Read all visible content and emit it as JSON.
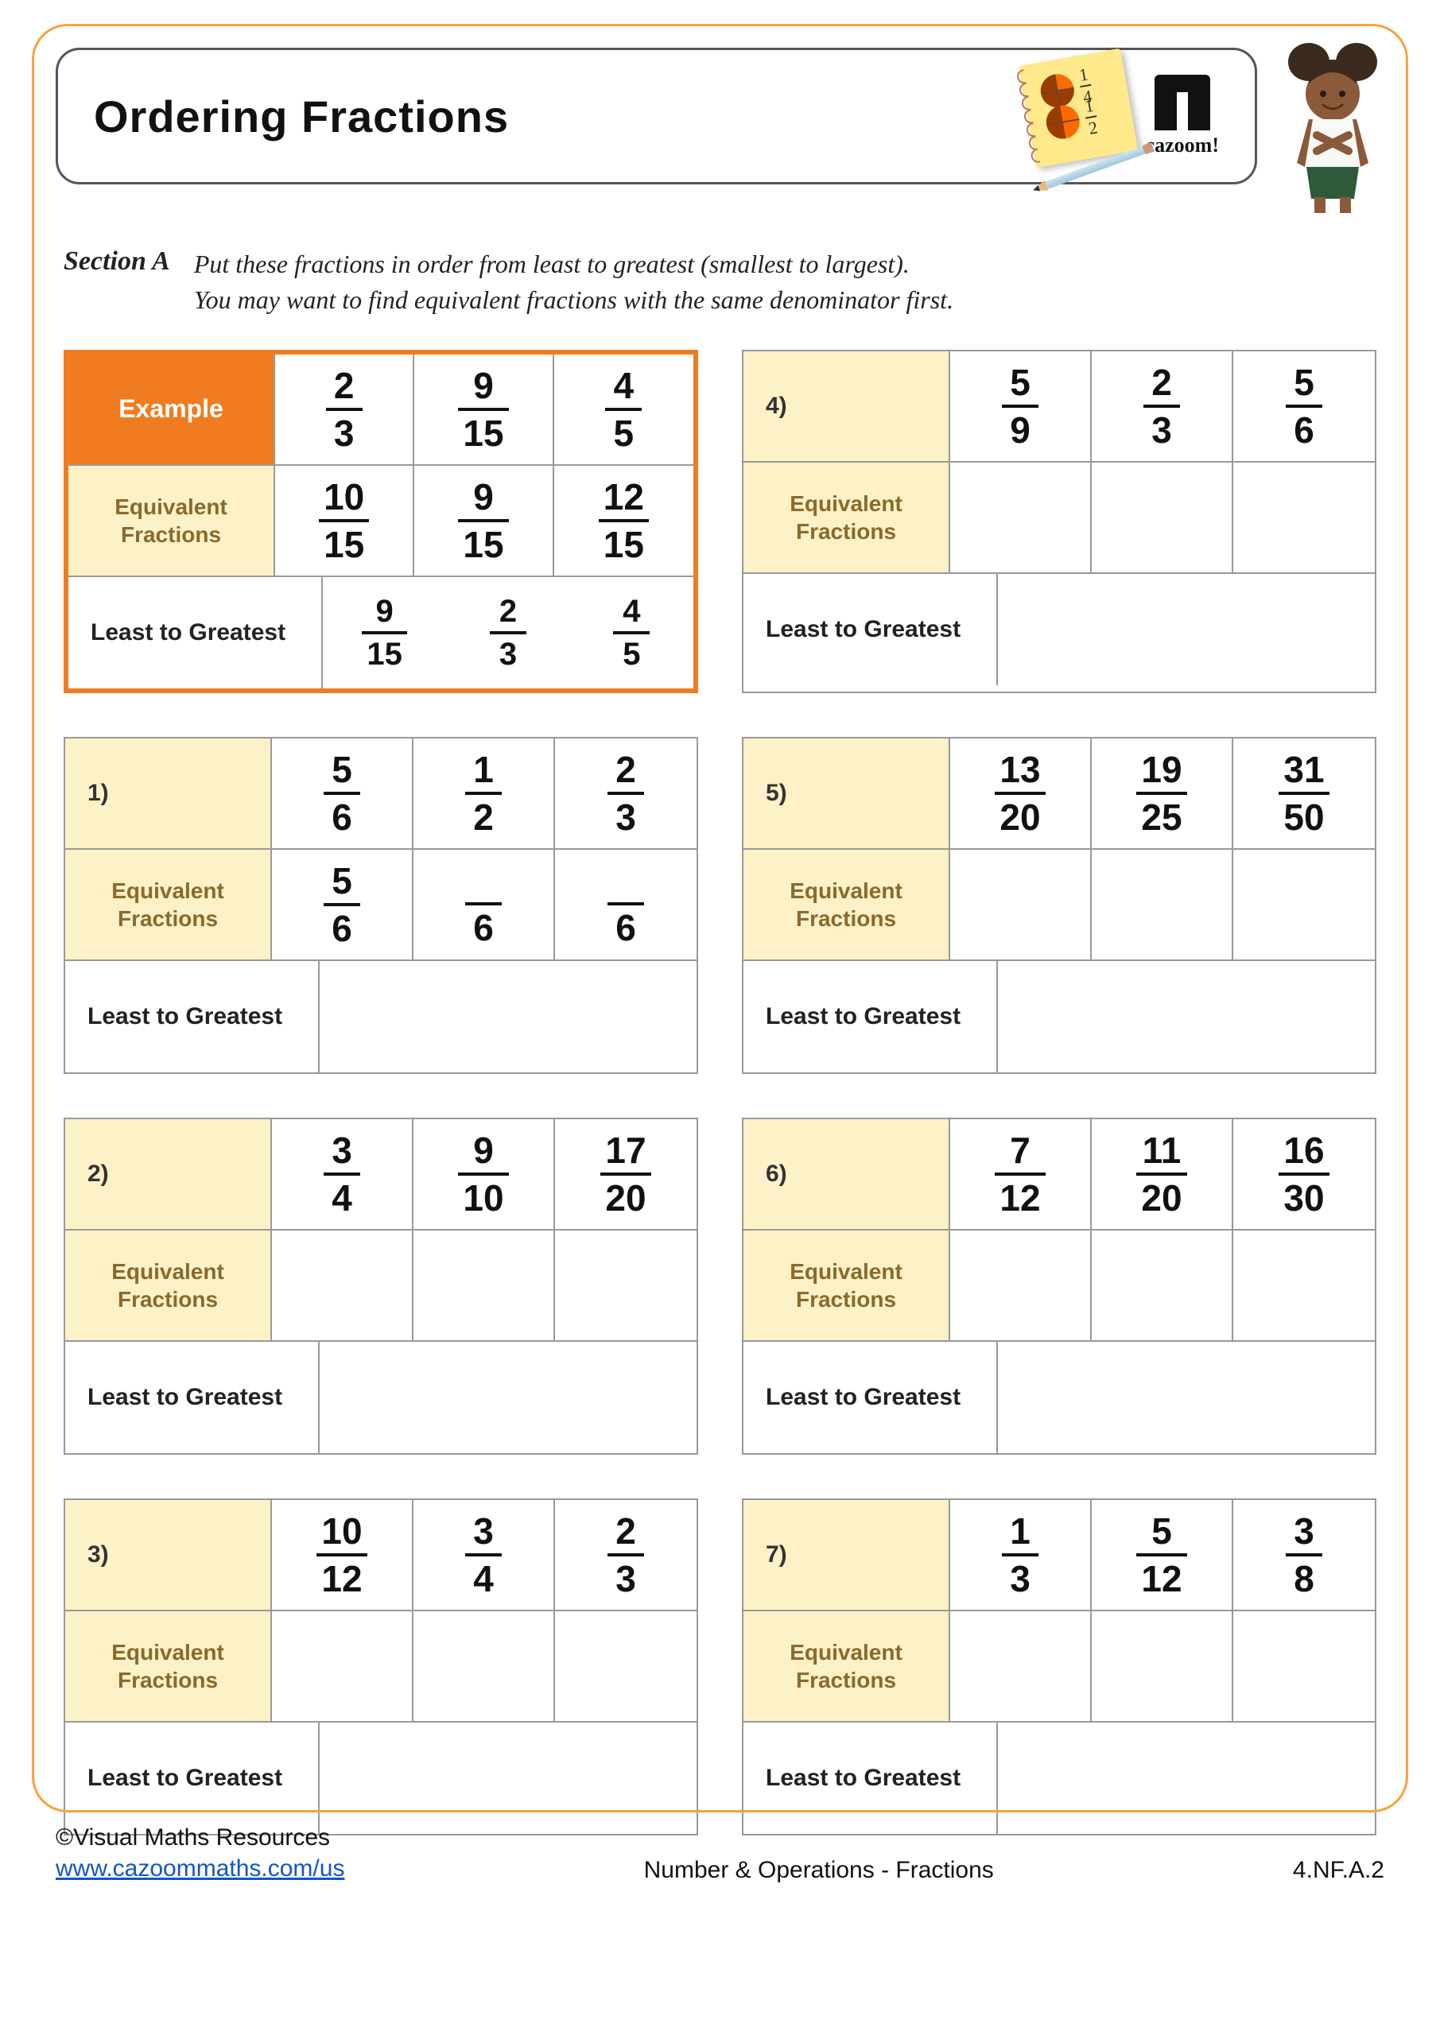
{
  "colors": {
    "page_border": "#f7a33e",
    "example_border": "#f07c1f",
    "example_header_bg": "#f07c1f",
    "example_header_fg": "#ffffff",
    "header_bg": "#fdf1c7",
    "header_fg": "#8a6a2c",
    "cell_border": "#999999",
    "text": "#111111",
    "link": "#1155cc"
  },
  "header": {
    "title": "Ordering Fractions",
    "notebook": {
      "frac1": {
        "n": "1",
        "d": "4",
        "shaded_pct": "25%"
      },
      "frac2": {
        "n": "1",
        "d": "2",
        "shaded_pct": "50%"
      }
    },
    "logo_text": "cazoom!"
  },
  "section": {
    "label": "Section A",
    "instruction_line1": "Put these fractions in order from least to greatest (smallest to largest).",
    "instruction_line2": "You may want to find equivalent fractions with the same denominator first."
  },
  "labels": {
    "equivalent": "Equivalent Fractions",
    "least_to_greatest": "Least to Greatest",
    "example": "Example"
  },
  "example": {
    "fractions": [
      {
        "n": "2",
        "d": "3"
      },
      {
        "n": "9",
        "d": "15"
      },
      {
        "n": "4",
        "d": "5"
      }
    ],
    "equivalents": [
      {
        "n": "10",
        "d": "15"
      },
      {
        "n": "9",
        "d": "15"
      },
      {
        "n": "12",
        "d": "15"
      }
    ],
    "answer": [
      {
        "n": "9",
        "d": "15"
      },
      {
        "n": "2",
        "d": "3"
      },
      {
        "n": "4",
        "d": "5"
      }
    ]
  },
  "problems": [
    {
      "id": "1)",
      "fractions": [
        {
          "n": "5",
          "d": "6"
        },
        {
          "n": "1",
          "d": "2"
        },
        {
          "n": "2",
          "d": "3"
        }
      ],
      "equivalents": [
        {
          "n": "5",
          "d": "6"
        },
        {
          "n": "",
          "d": "6"
        },
        {
          "n": "",
          "d": "6"
        }
      ]
    },
    {
      "id": "2)",
      "fractions": [
        {
          "n": "3",
          "d": "4"
        },
        {
          "n": "9",
          "d": "10"
        },
        {
          "n": "17",
          "d": "20"
        }
      ],
      "equivalents": [
        {
          "n": "",
          "d": ""
        },
        {
          "n": "",
          "d": ""
        },
        {
          "n": "",
          "d": ""
        }
      ]
    },
    {
      "id": "3)",
      "fractions": [
        {
          "n": "10",
          "d": "12"
        },
        {
          "n": "3",
          "d": "4"
        },
        {
          "n": "2",
          "d": "3"
        }
      ],
      "equivalents": [
        {
          "n": "",
          "d": ""
        },
        {
          "n": "",
          "d": ""
        },
        {
          "n": "",
          "d": ""
        }
      ]
    },
    {
      "id": "4)",
      "fractions": [
        {
          "n": "5",
          "d": "9"
        },
        {
          "n": "2",
          "d": "3"
        },
        {
          "n": "5",
          "d": "6"
        }
      ],
      "equivalents": [
        {
          "n": "",
          "d": ""
        },
        {
          "n": "",
          "d": ""
        },
        {
          "n": "",
          "d": ""
        }
      ]
    },
    {
      "id": "5)",
      "fractions": [
        {
          "n": "13",
          "d": "20"
        },
        {
          "n": "19",
          "d": "25"
        },
        {
          "n": "31",
          "d": "50"
        }
      ],
      "equivalents": [
        {
          "n": "",
          "d": ""
        },
        {
          "n": "",
          "d": ""
        },
        {
          "n": "",
          "d": ""
        }
      ]
    },
    {
      "id": "6)",
      "fractions": [
        {
          "n": "7",
          "d": "12"
        },
        {
          "n": "11",
          "d": "20"
        },
        {
          "n": "16",
          "d": "30"
        }
      ],
      "equivalents": [
        {
          "n": "",
          "d": ""
        },
        {
          "n": "",
          "d": ""
        },
        {
          "n": "",
          "d": ""
        }
      ]
    },
    {
      "id": "7)",
      "fractions": [
        {
          "n": "1",
          "d": "3"
        },
        {
          "n": "5",
          "d": "12"
        },
        {
          "n": "3",
          "d": "8"
        }
      ],
      "equivalents": [
        {
          "n": "",
          "d": ""
        },
        {
          "n": "",
          "d": ""
        },
        {
          "n": "",
          "d": ""
        }
      ]
    }
  ],
  "footer": {
    "copyright": "©Visual Maths Resources",
    "url": "www.cazoommaths.com/us",
    "center": "Number & Operations - Fractions",
    "standard": "4.NF.A.2"
  }
}
